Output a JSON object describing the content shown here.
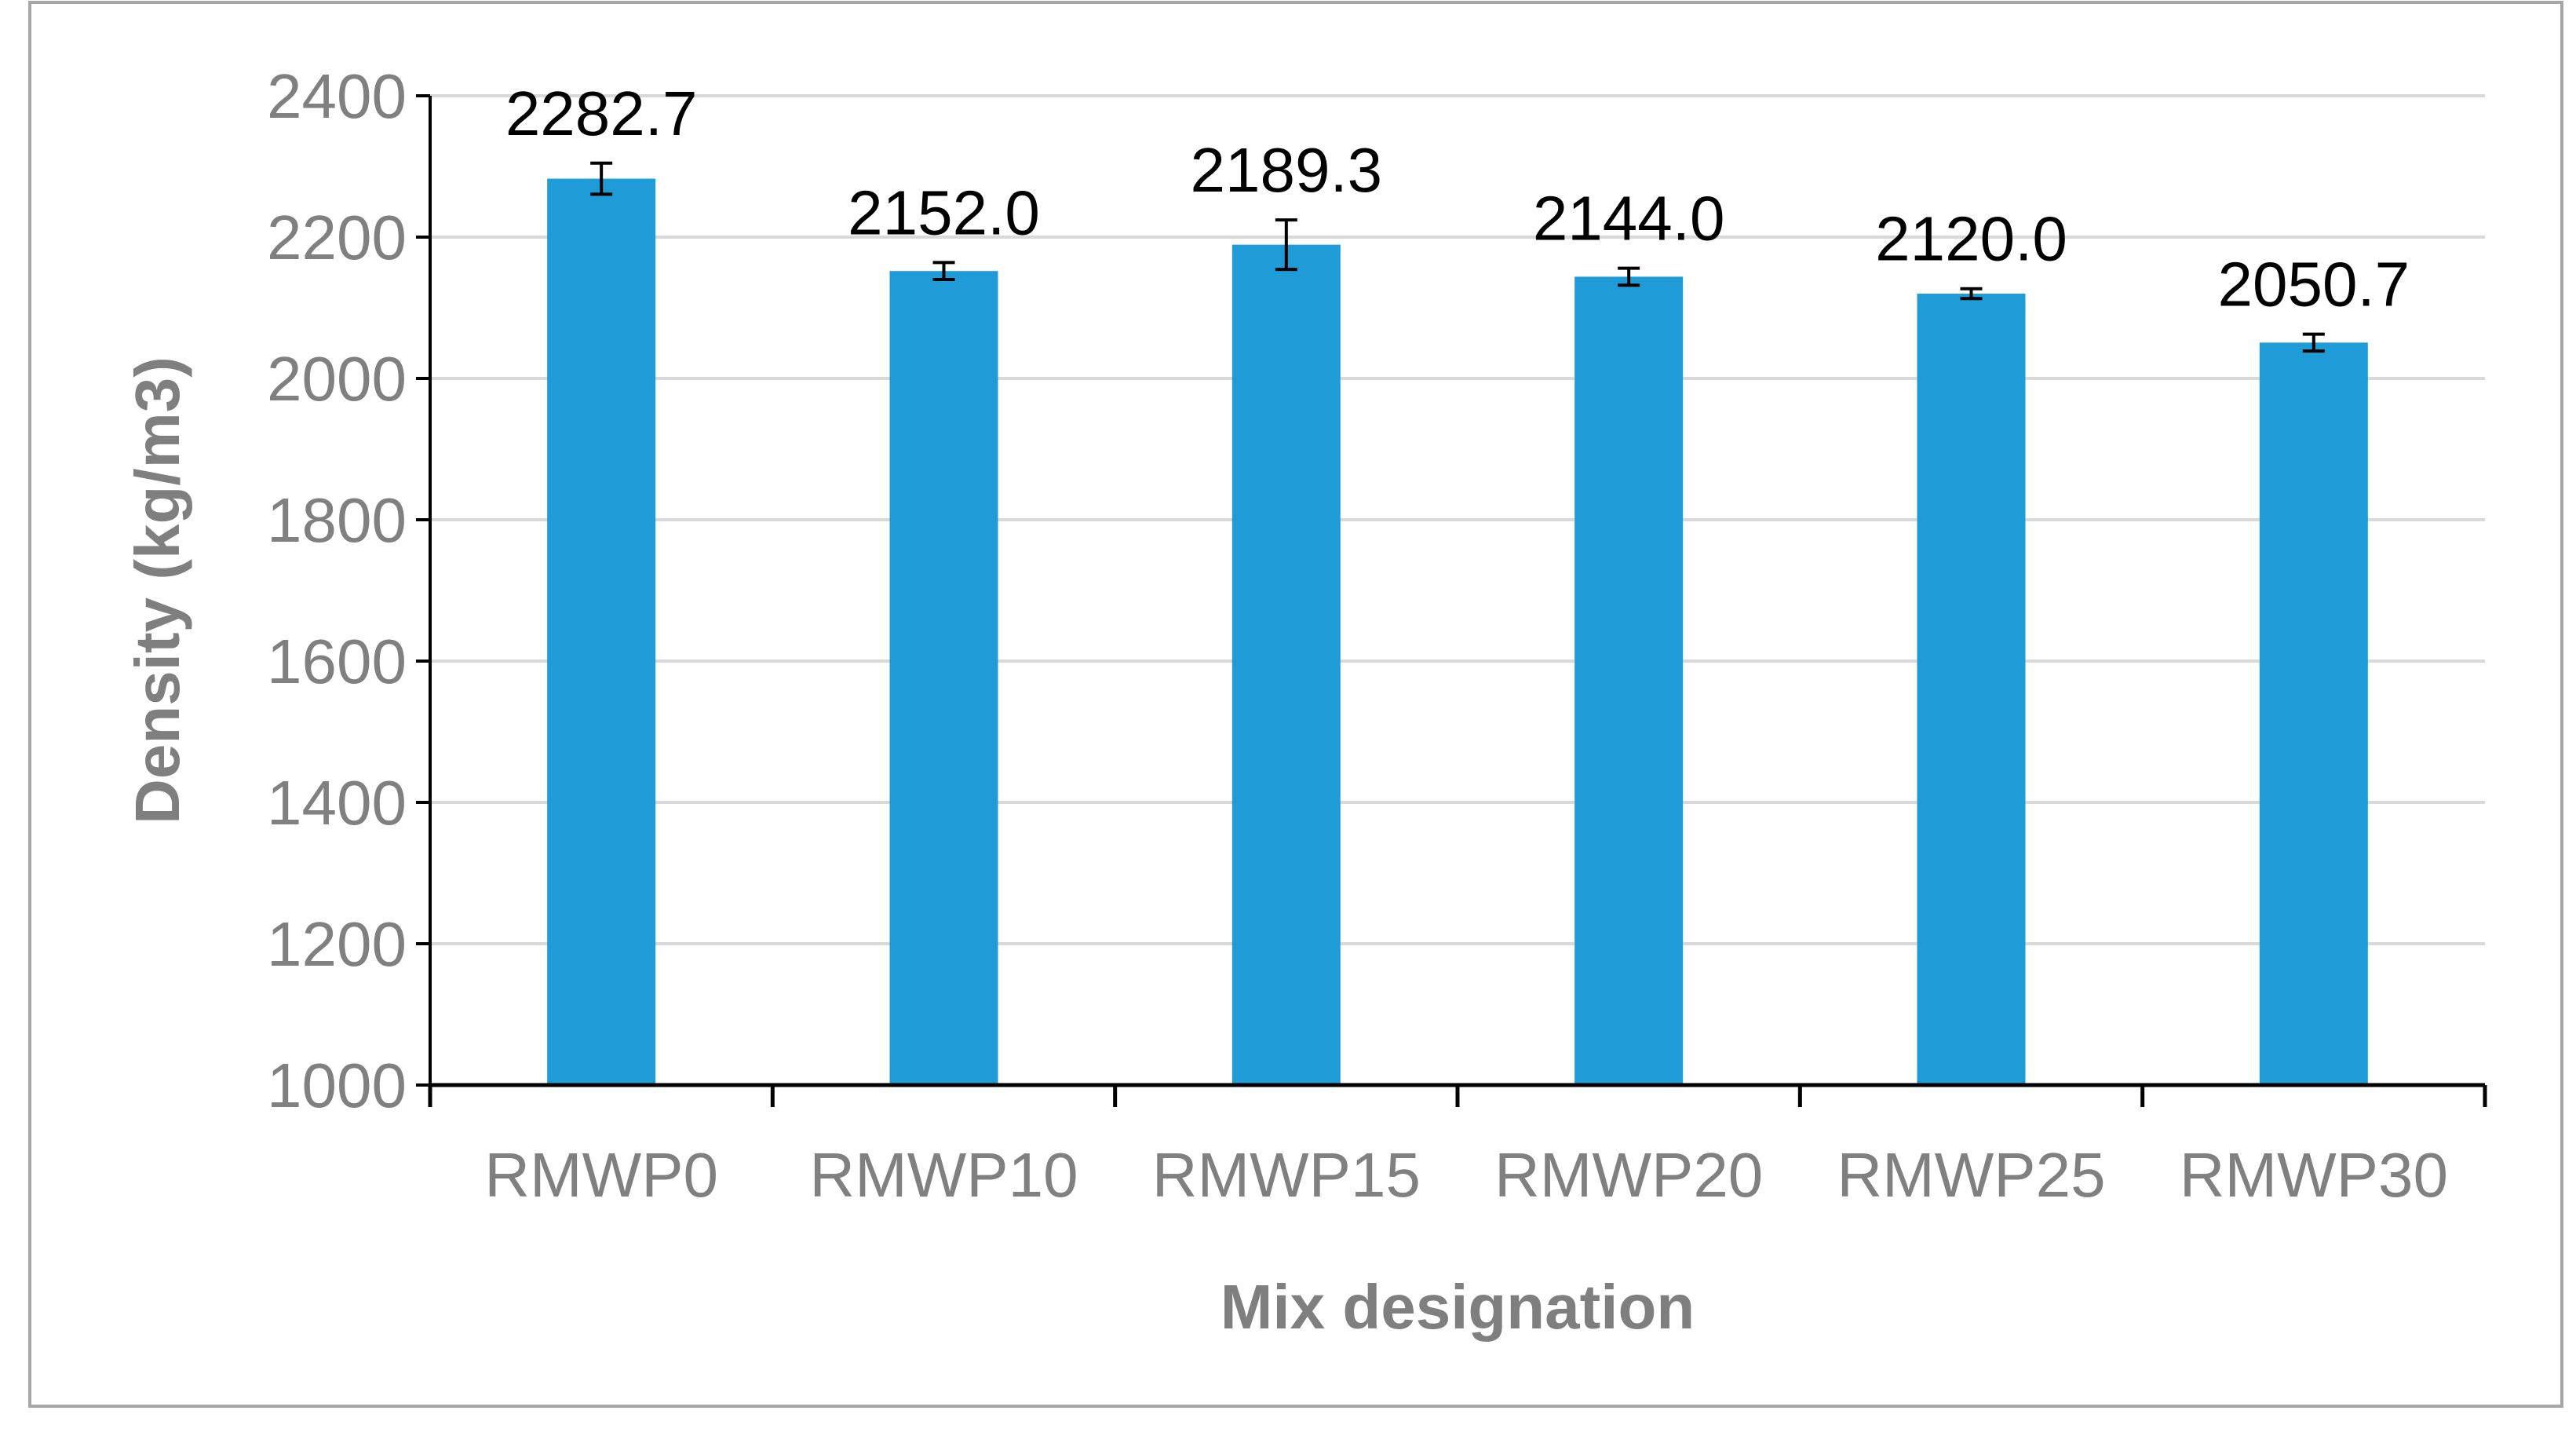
{
  "chart_data": {
    "type": "bar",
    "title": "",
    "xlabel": "Mix designation",
    "ylabel": "Density  (kg/m3)",
    "categories": [
      "RMWP0",
      "RMWP10",
      "RMWP15",
      "RMWP20",
      "RMWP25",
      "RMWP30"
    ],
    "values": [
      2282.7,
      2152.0,
      2189.3,
      2144.0,
      2120.0,
      2050.7
    ],
    "data_labels": [
      "2282.7",
      "2152.0",
      "2189.3",
      "2144.0",
      "2120.0",
      "2050.7"
    ],
    "error_bars": [
      22,
      12,
      35,
      12,
      7,
      12
    ],
    "ylim": [
      1000,
      2400
    ],
    "yticks": [
      1000,
      1200,
      1400,
      1600,
      1800,
      2000,
      2200,
      2400
    ],
    "grid": true,
    "legend": "none",
    "colors": {
      "bar": "#1f9bd7",
      "grid": "#d9d9d9",
      "axis": "#000000",
      "border": "#a6a6a6"
    }
  }
}
